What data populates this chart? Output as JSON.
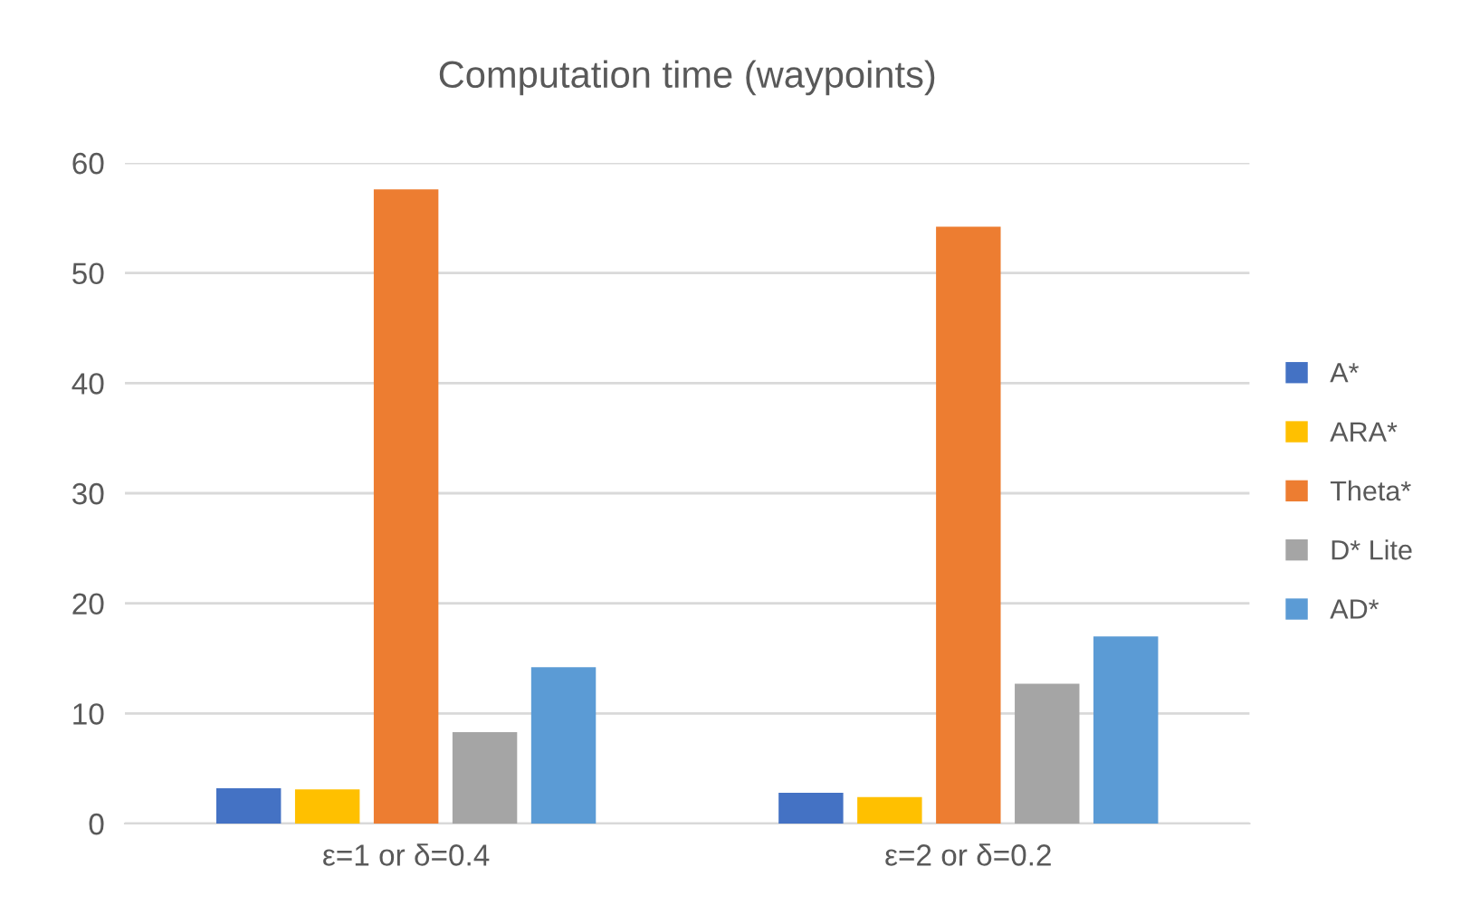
{
  "chart_data": {
    "type": "bar",
    "title": "Computation time (waypoints)",
    "categories": [
      "ε=1 or δ=0.4",
      "ε=2 or δ=0.2"
    ],
    "series": [
      {
        "name": "A*",
        "color": "#4472c4",
        "values": [
          3.2,
          2.8
        ]
      },
      {
        "name": "ARA*",
        "color": "#ffc000",
        "values": [
          3.1,
          2.4
        ]
      },
      {
        "name": "Theta*",
        "color": "#ed7d31",
        "values": [
          57.6,
          54.2
        ]
      },
      {
        "name": "D* Lite",
        "color": "#a5a5a5",
        "values": [
          8.3,
          12.7
        ]
      },
      {
        "name": "AD*",
        "color": "#5b9bd5",
        "values": [
          14.2,
          17.0
        ]
      }
    ],
    "ylim": [
      0,
      60
    ],
    "yticks": [
      0,
      10,
      20,
      30,
      40,
      50,
      60
    ],
    "grid": "y",
    "legend": "right"
  }
}
